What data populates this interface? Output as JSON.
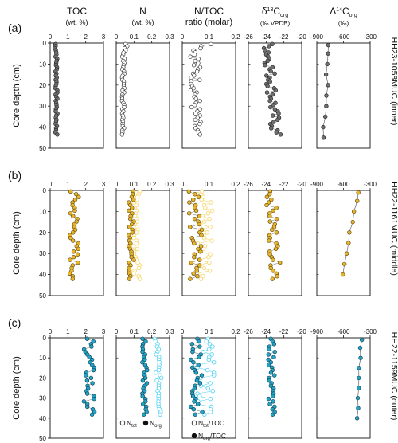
{
  "chart_data": {
    "type": "scatter",
    "columns": [
      {
        "id": "toc",
        "label1": "TOC",
        "label2": "(wt. %)",
        "ticks": [
          "0",
          "1",
          "2",
          "3"
        ],
        "xlim": [
          0,
          3
        ]
      },
      {
        "id": "n",
        "label1": "N",
        "label2": "(wt. %)",
        "ticks": [
          "0",
          "0.1",
          "0.2",
          "0.3"
        ],
        "xlim": [
          0,
          0.3
        ]
      },
      {
        "id": "ntoc",
        "label1": "N/TOC",
        "label2": "ratio (molar)",
        "ticks": [
          "0",
          "0.1",
          "0.2"
        ],
        "xlim": [
          0,
          0.2
        ]
      },
      {
        "id": "d13c",
        "label1": "δ¹³Corg",
        "label2": "(‰ VPDB)",
        "ticks": [
          "-26",
          "-24",
          "-22",
          "-20"
        ],
        "xlim": [
          -26,
          -20
        ]
      },
      {
        "id": "D14c",
        "label1": "Δ¹⁴Corg",
        "label2": "(‰)",
        "ticks": [
          "-900",
          "-600",
          "-300"
        ],
        "xlim": [
          -900,
          -300
        ]
      }
    ],
    "ylabel": "Core depth (cm)",
    "y_ticks": [
      "0",
      "10",
      "20",
      "30",
      "40",
      "50"
    ],
    "ylim": [
      0,
      50
    ],
    "rows": [
      {
        "panel": "(a)",
        "core": "HH23-1058MUC (inner)",
        "color": "#6e6e6e",
        "edge": "#222222"
      },
      {
        "panel": "(b)",
        "core": "HH22-1161MUC (middle)",
        "color": "#e8b52a",
        "edge": "#5a4510",
        "light": "#f8d870"
      },
      {
        "panel": "(c)",
        "core": "HH22-1159MUC (outer)",
        "color": "#22a2c4",
        "edge": "#0f3f50",
        "light": "#5fd6f2"
      }
    ],
    "legend": {
      "n_tot": "Ntot",
      "n_org": "Norg",
      "ntot_toc": "Ntot/TOC",
      "norg_toc": "Norg/TOC"
    }
  }
}
